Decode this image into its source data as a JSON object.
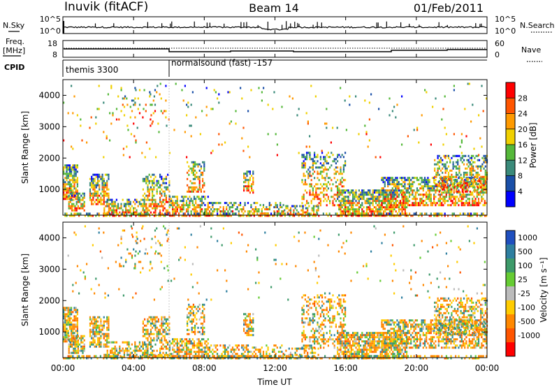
{
  "header": {
    "station": "Inuvik (fitACF)",
    "beam": "Beam 14",
    "date": "01/Feb/2011"
  },
  "top_panels": {
    "nsky_label": "N.Sky",
    "nsky_ticks": [
      "10^5",
      "10^0"
    ],
    "nsearch_label": "N.Search",
    "nsearch_ticks": [
      "10^5",
      "10^0"
    ],
    "freq_label_line1": "Freq.",
    "freq_label_line2": "[MHz]",
    "freq_ticks": [
      "18",
      "8"
    ],
    "nave_label": "Nave",
    "nave_ticks": [
      "60",
      "0"
    ],
    "cpid_label": "CPID",
    "cpid_segments": [
      {
        "label": "themis 3300",
        "start_hour": 0,
        "end_hour": 6
      },
      {
        "label": "normalsound (fast) -157",
        "start_hour": 6,
        "end_hour": 24
      }
    ]
  },
  "chart_data": [
    {
      "type": "heatmap",
      "panel": "power",
      "ylabel": "Slant Range [km]",
      "yticks": [
        "1000",
        "2000",
        "3000",
        "4000"
      ],
      "ylim": [
        180,
        4500
      ],
      "colorbar_label": "Power [dB]",
      "colorbar_ticks": [
        "4",
        "8",
        "12",
        "16",
        "20",
        "24",
        "28"
      ],
      "colors": [
        "#0000ff",
        "#1a4fa8",
        "#3a8a7a",
        "#55b83a",
        "#f0d000",
        "#ff9a00",
        "#ff5500",
        "#ff0000"
      ]
    },
    {
      "type": "heatmap",
      "panel": "velocity",
      "ylabel": "Slant Range [km]",
      "yticks": [
        "1000",
        "2000",
        "3000",
        "4000"
      ],
      "ylim": [
        180,
        4500
      ],
      "colorbar_label": "Velocity [m s⁻¹]",
      "colorbar_ticks": [
        "1000",
        "500",
        "100",
        "25",
        "-25",
        "-100",
        "-500",
        "-1000"
      ],
      "colors": [
        "#1f4fbf",
        "#2e7fa0",
        "#3d9a6a",
        "#66cc33",
        "#bbbbbb",
        "#ffcc00",
        "#ff8800",
        "#ff5500",
        "#ff0000"
      ]
    }
  ],
  "xaxis": {
    "label": "Time UT",
    "ticks": [
      "00:00",
      "04:00",
      "08:00",
      "12:00",
      "16:00",
      "20:00",
      "00:00"
    ]
  }
}
